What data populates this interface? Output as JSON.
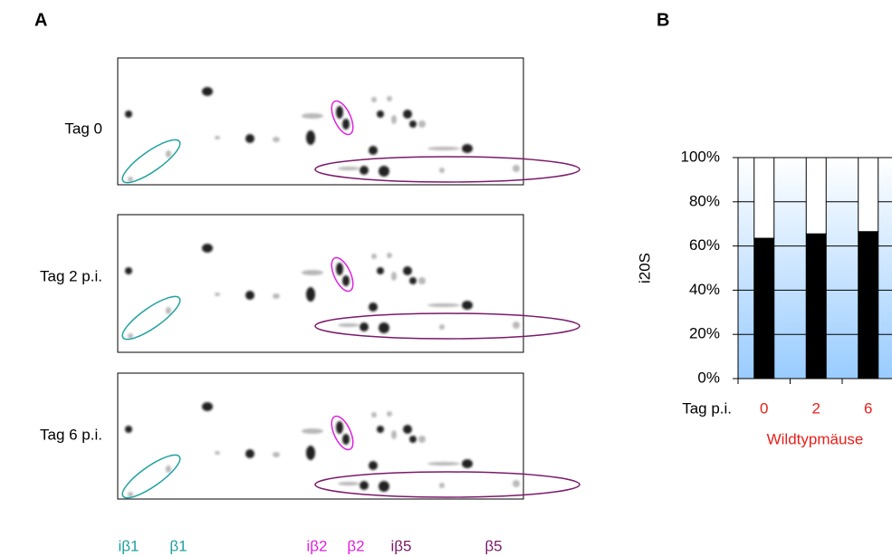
{
  "panels": {
    "left": "A",
    "right": "B"
  },
  "gel": {
    "rows": [
      "Tag 0",
      "Tag 2 p.i.",
      "Tag 6 p.i."
    ],
    "bands": [
      {
        "label": "iβ1",
        "color": "#20a0a0"
      },
      {
        "label": "β1",
        "color": "#20a0a0"
      },
      {
        "label": "iβ2",
        "color": "#e020e0"
      },
      {
        "label": "β2",
        "color": "#e020e0"
      },
      {
        "label": "iβ5",
        "color": "#7a1a6a"
      },
      {
        "label": "β5",
        "color": "#7a1a6a"
      }
    ]
  },
  "chart_data": {
    "type": "stacked_bar",
    "ylabel": "i20S",
    "category_axis_title": "Tag p.i.",
    "xlabel": "Wildtypmäuse",
    "category_color": "#e8201c",
    "categories": [
      "0",
      "2",
      "6"
    ],
    "series": [
      {
        "color": "#000000",
        "values": [
          63.5,
          65.5,
          66.5
        ]
      },
      {
        "color": "#ffffff",
        "values": [
          36.5,
          34.5,
          33.5
        ]
      }
    ],
    "ylim": [
      0,
      100
    ],
    "yticks": [
      {
        "value": 0,
        "label": "0%"
      },
      {
        "value": 20,
        "label": "20%"
      },
      {
        "value": 40,
        "label": "40%"
      },
      {
        "value": 60,
        "label": "60%"
      },
      {
        "value": 80,
        "label": "80%"
      },
      {
        "value": 100,
        "label": "100%"
      }
    ],
    "grid": true
  }
}
